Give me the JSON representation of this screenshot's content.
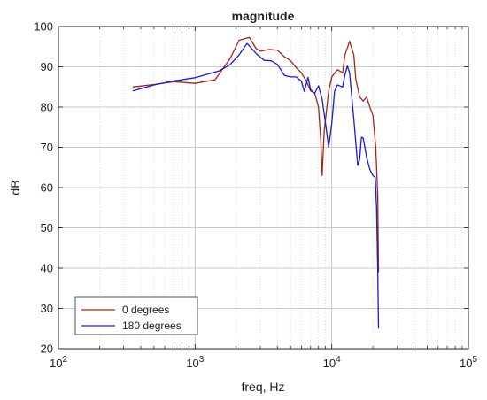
{
  "chart_data": {
    "type": "line",
    "title": "magnitude",
    "xlabel": "freq, Hz",
    "ylabel": "dB",
    "xscale": "log",
    "xlim": [
      100,
      100000
    ],
    "ylim": [
      20,
      100
    ],
    "xticks": [
      {
        "value": 100,
        "base": "10",
        "exp": "2"
      },
      {
        "value": 1000,
        "base": "10",
        "exp": "3"
      },
      {
        "value": 10000,
        "base": "10",
        "exp": "4"
      },
      {
        "value": 100000,
        "base": "10",
        "exp": "5"
      }
    ],
    "yticks": [
      20,
      30,
      40,
      50,
      60,
      70,
      80,
      90,
      100
    ],
    "grid": true,
    "legend_position": "bottom-left",
    "series": [
      {
        "name": "0 degrees",
        "color": "#a0261a",
        "points": [
          [
            350,
            85
          ],
          [
            500,
            85.6
          ],
          [
            700,
            86.3
          ],
          [
            1000,
            85.9
          ],
          [
            1400,
            86.8
          ],
          [
            1800,
            92
          ],
          [
            2100,
            96.6
          ],
          [
            2500,
            97.3
          ],
          [
            2800,
            94.5
          ],
          [
            3000,
            93.9
          ],
          [
            3500,
            94.3
          ],
          [
            4000,
            94.1
          ],
          [
            4500,
            92.5
          ],
          [
            5000,
            91.5
          ],
          [
            5500,
            89.8
          ],
          [
            6000,
            88.5
          ],
          [
            6500,
            86.5
          ],
          [
            7000,
            84
          ],
          [
            7500,
            83.5
          ],
          [
            8000,
            80
          ],
          [
            8300,
            72
          ],
          [
            8500,
            63
          ],
          [
            8800,
            74
          ],
          [
            9500,
            84
          ],
          [
            10000,
            87.5
          ],
          [
            11000,
            89.3
          ],
          [
            12000,
            88.5
          ],
          [
            12500,
            93
          ],
          [
            13500,
            96.3
          ],
          [
            14500,
            93
          ],
          [
            15000,
            87
          ],
          [
            16000,
            82.5
          ],
          [
            17000,
            81.5
          ],
          [
            18000,
            82.5
          ],
          [
            19000,
            80
          ],
          [
            20000,
            78
          ],
          [
            21000,
            70
          ],
          [
            21700,
            58
          ],
          [
            22000,
            39
          ]
        ]
      },
      {
        "name": "180 degrees",
        "color": "#1a1acc",
        "points": [
          [
            350,
            84
          ],
          [
            500,
            85.5
          ],
          [
            700,
            86.5
          ],
          [
            1000,
            87.3
          ],
          [
            1500,
            89
          ],
          [
            1800,
            90.5
          ],
          [
            2100,
            93
          ],
          [
            2400,
            95.8
          ],
          [
            2800,
            93.3
          ],
          [
            3200,
            91.6
          ],
          [
            3600,
            91.5
          ],
          [
            4000,
            90.6
          ],
          [
            4500,
            87.9
          ],
          [
            5000,
            87.5
          ],
          [
            5500,
            87.5
          ],
          [
            6000,
            86.4
          ],
          [
            6300,
            83.9
          ],
          [
            6700,
            87.4
          ],
          [
            7000,
            84.3
          ],
          [
            7500,
            83.4
          ],
          [
            8000,
            85.3
          ],
          [
            8500,
            82
          ],
          [
            9000,
            76
          ],
          [
            9500,
            70
          ],
          [
            10000,
            76
          ],
          [
            10500,
            84
          ],
          [
            11000,
            85.5
          ],
          [
            12000,
            85
          ],
          [
            12500,
            88
          ],
          [
            13000,
            90.2
          ],
          [
            13500,
            88.5
          ],
          [
            14500,
            77
          ],
          [
            15500,
            65.5
          ],
          [
            16000,
            67
          ],
          [
            16500,
            72.5
          ],
          [
            17000,
            72.3
          ],
          [
            18000,
            67.5
          ],
          [
            19000,
            64.5
          ],
          [
            20000,
            63
          ],
          [
            20800,
            62.5
          ],
          [
            21300,
            55
          ],
          [
            21700,
            40
          ],
          [
            22000,
            25
          ]
        ]
      }
    ]
  }
}
